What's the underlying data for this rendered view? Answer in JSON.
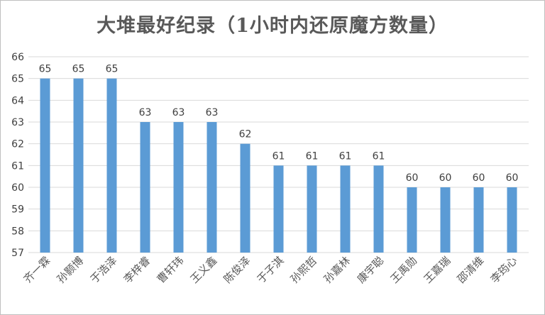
{
  "chart_data": {
    "type": "bar",
    "title": "大堆最好纪录（1小时内还原魔方数量）",
    "categories": [
      "齐一霖",
      "孙颢博",
      "于浩泽",
      "李梓睿",
      "曹轩玮",
      "王义鑫",
      "陈俊泽",
      "于子淇",
      "孙熙哲",
      "孙嘉林",
      "康宇聪",
      "王禹勋",
      "王嘉瑞",
      "邵清维",
      "李筠心"
    ],
    "values": [
      65,
      65,
      65,
      63,
      63,
      63,
      62,
      61,
      61,
      61,
      61,
      60,
      60,
      60,
      60
    ],
    "ylim": [
      57,
      66
    ],
    "yticks": [
      57,
      58,
      59,
      60,
      61,
      62,
      63,
      64,
      65,
      66
    ],
    "xlabel": "",
    "ylabel": "",
    "grid": true,
    "bar_color": "#5b9bd5",
    "data_labels": true
  }
}
